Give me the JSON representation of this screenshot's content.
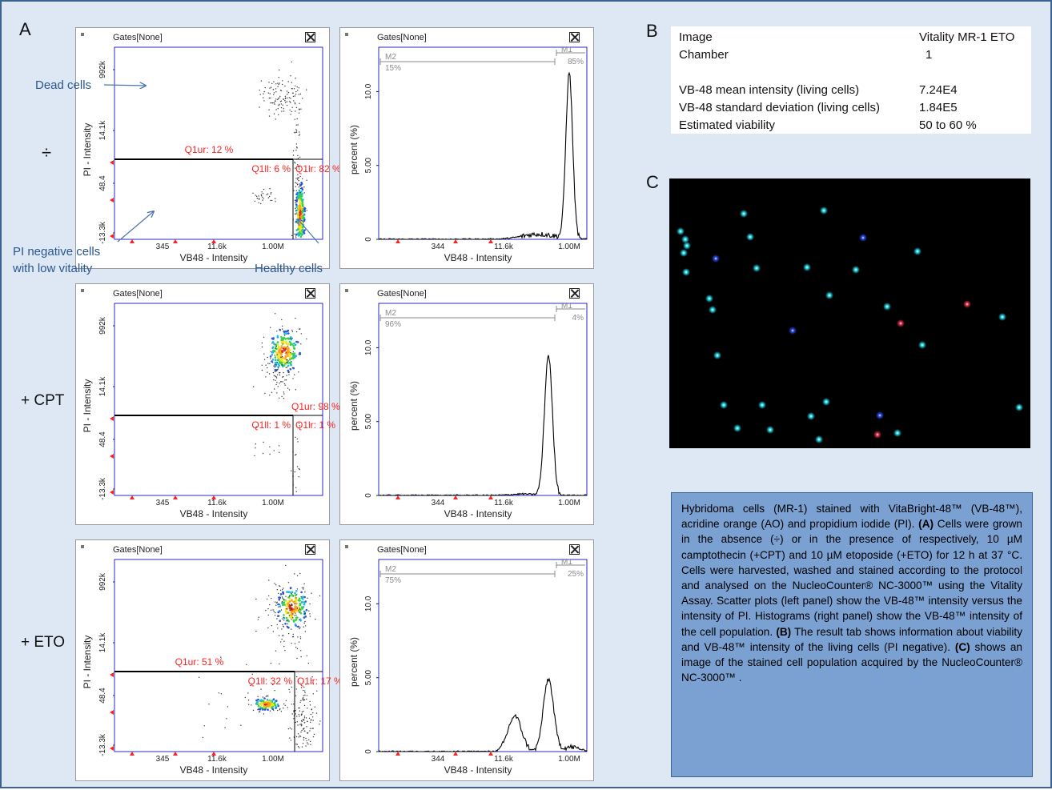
{
  "panels": {
    "a": "A",
    "b": "B",
    "c": "C"
  },
  "rows": [
    {
      "label": "÷",
      "scatter": {
        "gates": "Gates[None]",
        "ylabel": "PI - Intensity",
        "xlabel": "VB48 - Intensity",
        "yticks": [
          "992k",
          "14.1k",
          "48.4",
          "-13.3k"
        ],
        "xticks": [
          "345",
          "11.6k",
          "1.00M"
        ],
        "q1ur": "Q1ur: 12 %",
        "q1ll": "Q1ll: 6 %",
        "q1lr": "Q1lr: 82 %"
      },
      "histogram": {
        "gates": "Gates[None]",
        "ylabel": "percent (%)",
        "xlabel": "VB48 - Intensity",
        "yticks": [
          "0",
          "5.00",
          "10.0"
        ],
        "xticks": [
          "344",
          "11.6k",
          "1.00M"
        ],
        "m1": "M1",
        "m1_pct": "85%",
        "m2": "M2",
        "m2_pct": "15%"
      }
    },
    {
      "label": "+ CPT",
      "scatter": {
        "gates": "Gates[None]",
        "ylabel": "PI - Intensity",
        "xlabel": "VB48 - Intensity",
        "yticks": [
          "992k",
          "14.1k",
          "48.4",
          "-13.3k"
        ],
        "xticks": [
          "345",
          "11.6k",
          "1.00M"
        ],
        "q1ur": "Q1ur: 98 %",
        "q1ll": "Q1ll: 1 %",
        "q1lr": "Q1lr: 1 %"
      },
      "histogram": {
        "gates": "Gates[None]",
        "ylabel": "percent (%)",
        "xlabel": "VB48 - Intensity",
        "yticks": [
          "0",
          "5.00",
          "10.0"
        ],
        "xticks": [
          "344",
          "11.6k",
          "1.00M"
        ],
        "m1": "M1",
        "m1_pct": "4%",
        "m2": "M2",
        "m2_pct": "96%"
      }
    },
    {
      "label": "+ ETO",
      "scatter": {
        "gates": "Gates[None]",
        "ylabel": "PI - Intensity",
        "xlabel": "VB48 - Intensity",
        "yticks": [
          "992k",
          "14.1k",
          "48.4",
          "-13.3k"
        ],
        "xticks": [
          "345",
          "11.6k",
          "1.00M"
        ],
        "q1ur": "Q1ur: 51 %",
        "q1ll": "Q1ll: 32 %",
        "q1lr": "Q1lr: 17 %"
      },
      "histogram": {
        "gates": "Gates[None]",
        "ylabel": "percent (%)",
        "xlabel": "VB48 - Intensity",
        "yticks": [
          "0",
          "5.00",
          "10.0"
        ],
        "xticks": [
          "344",
          "11.6k",
          "1.00M"
        ],
        "m1": "M1",
        "m1_pct": "25%",
        "m2": "M2",
        "m2_pct": "75%"
      }
    }
  ],
  "annotations": {
    "dead": "Dead cells",
    "pi_negative_1": "PI negative cells",
    "pi_negative_2": "with low vitality",
    "healthy": "Healthy cells"
  },
  "results_table": [
    {
      "key": "Image",
      "value": "Vitality MR-1 ETO"
    },
    {
      "key": "Chamber",
      "value": "1"
    },
    {
      "key": "VB-48 mean intensity (living cells)",
      "value": "7.24E4"
    },
    {
      "key": "VB-48 standard deviation (living cells)",
      "value": "1.84E5"
    },
    {
      "key": "Estimated viability",
      "value": "50 to 60 %"
    }
  ],
  "caption": {
    "s1": "Hybridoma cells (MR-1) stained with VitaBright-48™ (VB-48™), acridine orange (AO) and propidium iodide (PI). ",
    "a": "(A)",
    "s2": " Cells were grown in the absence (÷) or in the presence of respectively, 10 µM camptothecin (+CPT) and 10 µM etoposide (+ETO) for 12 h at 37 °C. Cells were harvested, washed and stained according to the protocol and analysed on the NucleoCounter® NC-3000™ using the Vitality Assay. Scatter plots (left panel) show the VB-48™ intensity versus the intensity of PI. Histograms (right panel) show the VB-48™ intensity of the cell population. ",
    "b": "(B)",
    "s3": " The result tab shows information about viability and VB-48™ intensity of the living cells (PI negative). ",
    "c": "(C)",
    "s4": " shows an image of the stained cell population acquired by the NucleoCounter® NC-3000™ ."
  },
  "chart_data": [
    {
      "type": "scatter",
      "condition": "÷",
      "xlabel": "VB48 - Intensity",
      "ylabel": "PI - Intensity",
      "quadrants": {
        "Q1ur": 12,
        "Q1ll": 6,
        "Q1lr": 82
      }
    },
    {
      "type": "line",
      "condition": "÷",
      "xlabel": "VB48 - Intensity",
      "ylabel": "percent (%)",
      "ylim": [
        0,
        13
      ],
      "gates": {
        "M1": 85,
        "M2": 15
      },
      "peaks": [
        {
          "x": "≈1.00M",
          "y": 11.2
        }
      ]
    },
    {
      "type": "scatter",
      "condition": "+ CPT",
      "xlabel": "VB48 - Intensity",
      "ylabel": "PI - Intensity",
      "quadrants": {
        "Q1ur": 98,
        "Q1ll": 1,
        "Q1lr": 1
      }
    },
    {
      "type": "line",
      "condition": "+ CPT",
      "xlabel": "VB48 - Intensity",
      "ylabel": "percent (%)",
      "ylim": [
        0,
        13
      ],
      "gates": {
        "M1": 4,
        "M2": 96
      },
      "peaks": [
        {
          "x": "≈200k",
          "y": 9.5
        }
      ]
    },
    {
      "type": "scatter",
      "condition": "+ ETO",
      "xlabel": "VB48 - Intensity",
      "ylabel": "PI - Intensity",
      "quadrants": {
        "Q1ur": 51,
        "Q1ll": 32,
        "Q1lr": 17
      }
    },
    {
      "type": "line",
      "condition": "+ ETO",
      "xlabel": "VB48 - Intensity",
      "ylabel": "percent (%)",
      "ylim": [
        0,
        13
      ],
      "gates": {
        "M1": 25,
        "M2": 75
      },
      "peaks": [
        {
          "x": "≈11.6k",
          "y": 2.5
        },
        {
          "x": "≈150k",
          "y": 4.9
        }
      ]
    }
  ]
}
